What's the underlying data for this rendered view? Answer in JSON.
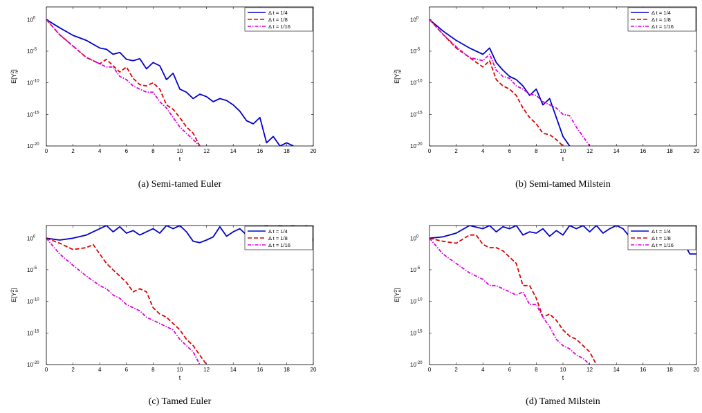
{
  "panels": [
    {
      "caption": "(a) Semi-tamed Euler",
      "chart_data": {
        "type": "line",
        "xlabel": "t",
        "ylabel": "E[Y_n^2]",
        "xlim": [
          0,
          20
        ],
        "ylim": [
          1e-20,
          100.0
        ],
        "yscale": "log",
        "xticks": [
          0,
          2,
          4,
          6,
          8,
          10,
          12,
          14,
          16,
          18,
          20
        ],
        "yticks_exp": [
          0,
          -5,
          -10,
          -15,
          -20
        ],
        "legend_placement": "top-right",
        "series": [
          {
            "name": "Δ t = 1/4",
            "color": "#0000cc",
            "dash": "solid",
            "x": [
              0,
              1,
              2,
              3,
              4,
              4.5,
              5,
              5.5,
              6,
              6.5,
              7,
              7.5,
              8,
              8.5,
              9,
              9.5,
              10,
              10.5,
              11,
              11.5,
              12,
              12.5,
              13,
              13.5,
              14,
              14.5,
              15,
              15.5,
              16,
              16.5,
              17,
              17.5,
              18,
              18.5
            ],
            "log10y": [
              0,
              -1.3,
              -2.5,
              -3.3,
              -4.5,
              -4.7,
              -5.5,
              -5.2,
              -6.3,
              -6.5,
              -6.2,
              -7.8,
              -6.8,
              -7.3,
              -9.5,
              -8.5,
              -11,
              -11.5,
              -12.5,
              -11.8,
              -12.2,
              -13,
              -12.5,
              -12.8,
              -13.5,
              -14.5,
              -16,
              -16.5,
              -15.5,
              -19.5,
              -18.5,
              -20,
              -19.5,
              -20
            ]
          },
          {
            "name": "Δ t = 1/8",
            "color": "#dd0000",
            "dash": "dashed",
            "x": [
              0,
              1,
              2,
              3,
              4,
              4.5,
              5,
              5.5,
              6,
              6.5,
              7,
              7.5,
              8,
              8.5,
              9,
              9.5,
              10,
              10.5,
              11,
              11.5
            ],
            "log10y": [
              0,
              -2.4,
              -4.2,
              -6,
              -7,
              -6.3,
              -7.3,
              -8.3,
              -7.5,
              -9.3,
              -10.3,
              -10.5,
              -10,
              -11,
              -13.5,
              -14.2,
              -15.5,
              -17,
              -18,
              -20
            ]
          },
          {
            "name": "Δ t = 1/16",
            "color": "#dd00dd",
            "dash": "dashdot",
            "x": [
              0,
              1,
              2,
              3,
              4,
              4.5,
              5,
              5.5,
              6,
              6.5,
              7,
              7.5,
              8,
              8.5,
              9,
              9.5,
              10,
              10.5,
              11,
              11.5
            ],
            "log10y": [
              0,
              -2.4,
              -4.2,
              -6,
              -7,
              -7.5,
              -7.5,
              -9,
              -9.5,
              -10.5,
              -11,
              -11.5,
              -11.5,
              -13,
              -14,
              -15.5,
              -17,
              -18,
              -19,
              -20
            ]
          }
        ]
      }
    },
    {
      "caption": "(b) Semi-tamed Milstein",
      "chart_data": {
        "type": "line",
        "xlabel": "t",
        "ylabel": "E[Y_n^2]",
        "xlim": [
          0,
          20
        ],
        "ylim": [
          1e-20,
          100.0
        ],
        "yscale": "log",
        "xticks": [
          0,
          2,
          4,
          6,
          8,
          10,
          12,
          14,
          16,
          18,
          20
        ],
        "yticks_exp": [
          0,
          -5,
          -10,
          -15,
          -20
        ],
        "legend_placement": "top-right",
        "series": [
          {
            "name": "Δ t = 1/4",
            "color": "#0000cc",
            "dash": "solid",
            "x": [
              0,
              1,
              2,
              3,
              4,
              4.5,
              5,
              5.5,
              6,
              6.5,
              7,
              7.5,
              8,
              8.5,
              9,
              9.5,
              10,
              10.5
            ],
            "log10y": [
              0,
              -1.8,
              -3.3,
              -4.5,
              -5.5,
              -4.5,
              -6.8,
              -8,
              -9,
              -9.5,
              -10.5,
              -12,
              -11,
              -13.5,
              -12.5,
              -15.5,
              -18.5,
              -20
            ]
          },
          {
            "name": "Δ t = 1/8",
            "color": "#dd0000",
            "dash": "dashed",
            "x": [
              0,
              1,
              2,
              3,
              4,
              4.5,
              5,
              5.5,
              6,
              6.5,
              7,
              7.5,
              8,
              8.5,
              9,
              9.5,
              10
            ],
            "log10y": [
              0,
              -2.3,
              -4.5,
              -6,
              -7.5,
              -6.5,
              -9.5,
              -10.5,
              -11,
              -12,
              -14,
              -15.5,
              -16.5,
              -18,
              -18.2,
              -19,
              -20
            ]
          },
          {
            "name": "Δ t = 1/16",
            "color": "#dd00dd",
            "dash": "dashdot",
            "x": [
              0,
              1,
              2,
              3,
              4,
              4.5,
              5,
              5.5,
              6,
              6.5,
              7,
              7.5,
              8,
              8.5,
              9,
              9.5,
              10,
              10.5,
              11,
              11.5,
              12
            ],
            "log10y": [
              0,
              -2.3,
              -4.3,
              -6,
              -6.5,
              -5.5,
              -8,
              -9,
              -9.3,
              -10.5,
              -11,
              -11.8,
              -12,
              -13,
              -13.5,
              -14,
              -15,
              -15.2,
              -17,
              -18.5,
              -20
            ]
          }
        ]
      }
    },
    {
      "caption": "(c) Tamed Euler",
      "chart_data": {
        "type": "line",
        "xlabel": "t",
        "ylabel": "E[Y_n^2]",
        "xlim": [
          0,
          20
        ],
        "ylim": [
          1e-20,
          100.0
        ],
        "yscale": "log",
        "xticks": [
          0,
          2,
          4,
          6,
          8,
          10,
          12,
          14,
          16,
          18,
          20
        ],
        "yticks_exp": [
          0,
          -5,
          -10,
          -15,
          -20
        ],
        "legend_placement": "top-right",
        "series": [
          {
            "name": "Δ t = 1/4",
            "color": "#0000cc",
            "dash": "solid",
            "x": [
              0,
              1,
              2,
              3,
              4,
              4.5,
              5,
              5.5,
              6,
              6.5,
              7,
              7.5,
              8,
              8.5,
              9,
              9.5,
              10,
              10.5,
              11,
              11.5,
              12,
              12.5,
              13,
              13.5,
              14,
              14.5,
              15,
              15.5,
              16,
              16.5,
              17,
              17.5,
              18,
              18.5,
              19,
              19.5,
              20
            ],
            "log10y": [
              0,
              -0.3,
              0,
              0.5,
              1.5,
              2,
              1,
              1.8,
              0.8,
              1.2,
              0.5,
              1,
              1.5,
              0.8,
              2,
              1.5,
              2,
              1,
              -0.5,
              -0.7,
              -0.3,
              0.2,
              1.8,
              0.3,
              1,
              1.5,
              0.5,
              1.8,
              1.5,
              2,
              1.2,
              2,
              1.5,
              2,
              0.8,
              2,
              -0.5
            ]
          },
          {
            "name": "Δ t = 1/8",
            "color": "#dd0000",
            "dash": "dashed",
            "x": [
              0,
              1,
              2,
              3,
              3.5,
              4,
              4.5,
              5,
              5.5,
              6,
              6.5,
              7,
              7.5,
              8,
              8.5,
              9,
              9.5,
              10,
              10.5,
              11,
              11.5,
              12
            ],
            "log10y": [
              0,
              -0.8,
              -1.8,
              -1.5,
              -1,
              -2.5,
              -4,
              -5,
              -6,
              -7,
              -8.5,
              -8,
              -8.5,
              -11,
              -12,
              -12.5,
              -13.5,
              -14.5,
              -16,
              -17,
              -18.5,
              -20
            ]
          },
          {
            "name": "Δ t = 1/16",
            "color": "#dd00dd",
            "dash": "dashdot",
            "x": [
              0,
              1,
              2,
              3,
              4,
              4.5,
              5,
              5.5,
              6,
              6.5,
              7,
              7.5,
              8,
              8.5,
              9,
              9.5,
              10,
              10.5,
              11,
              11.5
            ],
            "log10y": [
              0,
              -2.5,
              -4.3,
              -6,
              -7.5,
              -8,
              -9,
              -9.5,
              -10.5,
              -11,
              -11.5,
              -12.5,
              -13,
              -13.5,
              -14,
              -14.5,
              -16,
              -17,
              -18,
              -20
            ]
          }
        ]
      }
    },
    {
      "caption": "(d) Tamed Milstein",
      "chart_data": {
        "type": "line",
        "xlabel": "t",
        "ylabel": "E[Y_n^2]",
        "xlim": [
          0,
          20
        ],
        "ylim": [
          1e-20,
          100.0
        ],
        "yscale": "log",
        "xticks": [
          0,
          2,
          4,
          6,
          8,
          10,
          12,
          14,
          16,
          18,
          20
        ],
        "yticks_exp": [
          0,
          -5,
          -10,
          -15,
          -20
        ],
        "legend_placement": "top-right",
        "series": [
          {
            "name": "Δ t = 1/4",
            "color": "#0000cc",
            "dash": "solid",
            "x": [
              0,
              1,
              2,
              3,
              4,
              4.5,
              5,
              5.5,
              6,
              6.5,
              7,
              7.5,
              8,
              8.5,
              9,
              9.5,
              10,
              10.5,
              11,
              11.5,
              12,
              12.5,
              13,
              13.5,
              14,
              14.5,
              15,
              15.5,
              16,
              16.5,
              17,
              17.5,
              18,
              18.5,
              19,
              19.5,
              20
            ],
            "log10y": [
              0,
              0.2,
              0.8,
              2,
              1.5,
              2,
              1,
              1.8,
              1.5,
              2,
              0.5,
              1,
              0.8,
              1.5,
              0.3,
              1.2,
              0.5,
              2,
              1.5,
              2,
              1,
              2,
              0.8,
              1.5,
              2,
              1.5,
              0.2,
              1.8,
              0.8,
              1.8,
              0.5,
              1.5,
              1.3,
              1,
              -0.5,
              -2.5,
              -2.5
            ]
          },
          {
            "name": "Δ t = 1/8",
            "color": "#dd0000",
            "dash": "dashed",
            "x": [
              0,
              1,
              2,
              3,
              3.5,
              4,
              4.5,
              5,
              5.5,
              6,
              6.5,
              7,
              7.5,
              8,
              8.5,
              9,
              9.5,
              10,
              10.5,
              11,
              11.5,
              12,
              12.5
            ],
            "log10y": [
              0,
              -0.5,
              -0.8,
              0.5,
              0.5,
              -1,
              -1.5,
              -1.5,
              -2,
              -3,
              -4,
              -7.5,
              -7.5,
              -9.5,
              -12.5,
              -12,
              -13,
              -14.5,
              -15.5,
              -16,
              -17,
              -18,
              -20
            ]
          },
          {
            "name": "Δ t = 1/16",
            "color": "#dd00dd",
            "dash": "dashdot",
            "x": [
              0,
              1,
              2,
              3,
              4,
              4.5,
              5,
              5.5,
              6,
              6.5,
              7,
              7.5,
              8,
              8.5,
              9,
              9.5,
              10,
              10.5,
              11,
              11.5,
              12
            ],
            "log10y": [
              0,
              -2.5,
              -4,
              -5.5,
              -6.5,
              -7.5,
              -7.5,
              -8,
              -8.5,
              -9,
              -8.5,
              -10.5,
              -10.5,
              -12.5,
              -14,
              -16,
              -17,
              -17.5,
              -18.5,
              -19,
              -20
            ]
          }
        ]
      }
    }
  ]
}
